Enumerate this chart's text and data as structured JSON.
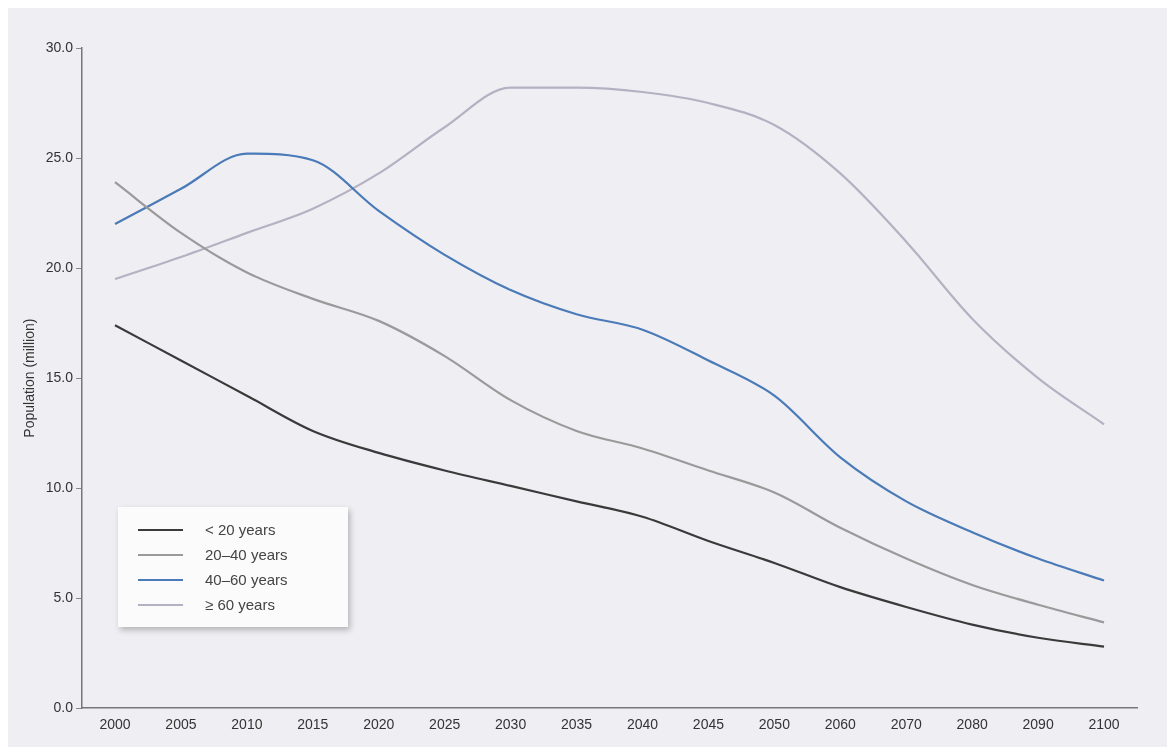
{
  "chart_data": {
    "type": "line",
    "ylabel": "Population (million)",
    "categories": [
      "2000",
      "2005",
      "2010",
      "2015",
      "2020",
      "2025",
      "2030",
      "2035",
      "2040",
      "2045",
      "2050",
      "2060",
      "2070",
      "2080",
      "2090",
      "2100"
    ],
    "series": [
      {
        "name": "< 20 years",
        "color": "#3a3a3a",
        "values": [
          17.4,
          15.8,
          14.2,
          12.6,
          11.6,
          10.8,
          10.1,
          9.4,
          8.7,
          7.6,
          6.6,
          5.5,
          4.6,
          3.8,
          3.2,
          2.8
        ]
      },
      {
        "name": "20–40 years",
        "color": "#9a9a9a",
        "values": [
          23.9,
          21.6,
          19.8,
          18.6,
          17.6,
          16.0,
          14.0,
          12.6,
          11.8,
          10.8,
          9.8,
          8.2,
          6.8,
          5.6,
          4.7,
          3.9
        ]
      },
      {
        "name": "40–60 years",
        "color": "#4a7ab8",
        "values": [
          22.0,
          23.6,
          25.2,
          24.9,
          22.6,
          20.6,
          19.0,
          17.9,
          17.2,
          15.8,
          14.2,
          11.4,
          9.4,
          8.0,
          6.8,
          5.8
        ]
      },
      {
        "name": "≥ 60 years",
        "color": "#b4b1c2",
        "values": [
          19.5,
          20.5,
          21.6,
          22.7,
          24.3,
          26.4,
          28.2,
          28.2,
          28.0,
          27.5,
          26.5,
          24.3,
          21.2,
          17.7,
          15.0,
          12.9
        ]
      }
    ],
    "ylim": [
      0,
      30
    ],
    "yticks": [
      {
        "value": 0,
        "label": "0.0"
      },
      {
        "value": 5,
        "label": "5.0"
      },
      {
        "value": 10,
        "label": "10.0"
      },
      {
        "value": 15,
        "label": "15.0"
      },
      {
        "value": 20,
        "label": "20.0"
      },
      {
        "value": 25,
        "label": "25.0"
      },
      {
        "value": 30,
        "label": "30.0"
      }
    ],
    "grid": false,
    "legend": "bottom left",
    "marker": "none",
    "line_style": "solid"
  }
}
